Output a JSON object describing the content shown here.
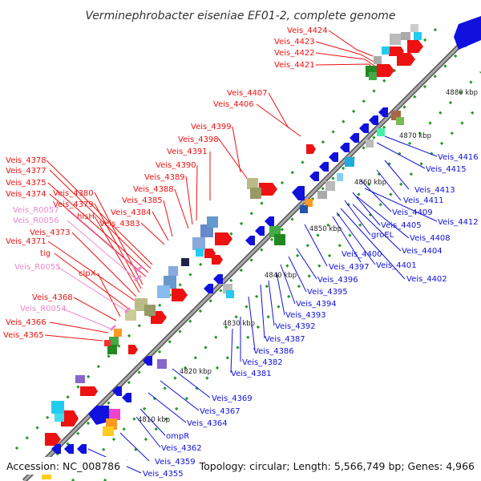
{
  "title": "Verminephrobacter eiseniae EF01-2, complete genome",
  "accession": "Accession: NC_008786",
  "topology": "Topology: circular; Length: 5,566,749 bp; Genes: 4,966",
  "colors": {
    "backbone": "#888888",
    "forward": "#ee1111",
    "reverse": "#1111dd",
    "rna": "#ee88cc",
    "dots": "#229922"
  },
  "kbp_ticks": [
    {
      "label": "4810 kbp"
    },
    {
      "label": "4820 kbp"
    },
    {
      "label": "4830 kbp"
    },
    {
      "label": "4840 kbp"
    },
    {
      "label": "4850 kbp"
    },
    {
      "label": "4860 kbp"
    },
    {
      "label": "4870 kbp"
    },
    {
      "label": "4880 kbp"
    }
  ],
  "labels_red": [
    "Veis_4424",
    "Veis_4423",
    "Veis_4422",
    "Veis_4421",
    "Veis_4407",
    "Veis_4406",
    "Veis_4399",
    "Veis_4398",
    "Veis_4391",
    "Veis_4390",
    "Veis_4389",
    "Veis_4388",
    "Veis_4385",
    "Veis_4384",
    "Veis_4383",
    "Veis_4378",
    "Veis_4377",
    "Veis_4375",
    "Veis_4374",
    "Veis_4380",
    "Veis_4379",
    "hisH",
    "Veis_4373",
    "Veis_4371",
    "tig",
    "clpX",
    "Veis_4368",
    "Veis_4366",
    "Veis_4365"
  ],
  "labels_pink": [
    "Veis_R0057",
    "Veis_R0056",
    "Veis_R0055",
    "Veis_R0054"
  ],
  "labels_blue": [
    "Veis_4416",
    "Veis_4415",
    "Veis_4413",
    "Veis_4411",
    "Veis_4409",
    "Veis_4412",
    "Veis_4405",
    "Veis_4408",
    "groEL",
    "Veis_4404",
    "Veis_4400",
    "Veis_4401",
    "Veis_4402",
    "Veis_4397",
    "Veis_4396",
    "Veis_4395",
    "Veis_4394",
    "Veis_4393",
    "Veis_4392",
    "Veis_4387",
    "Veis_4386",
    "Veis_4382",
    "Veis_4381",
    "Veis_4369",
    "Veis_4367",
    "Veis_4364",
    "ompR",
    "Veis_4362",
    "Veis_4359",
    "Veis_4355"
  ]
}
